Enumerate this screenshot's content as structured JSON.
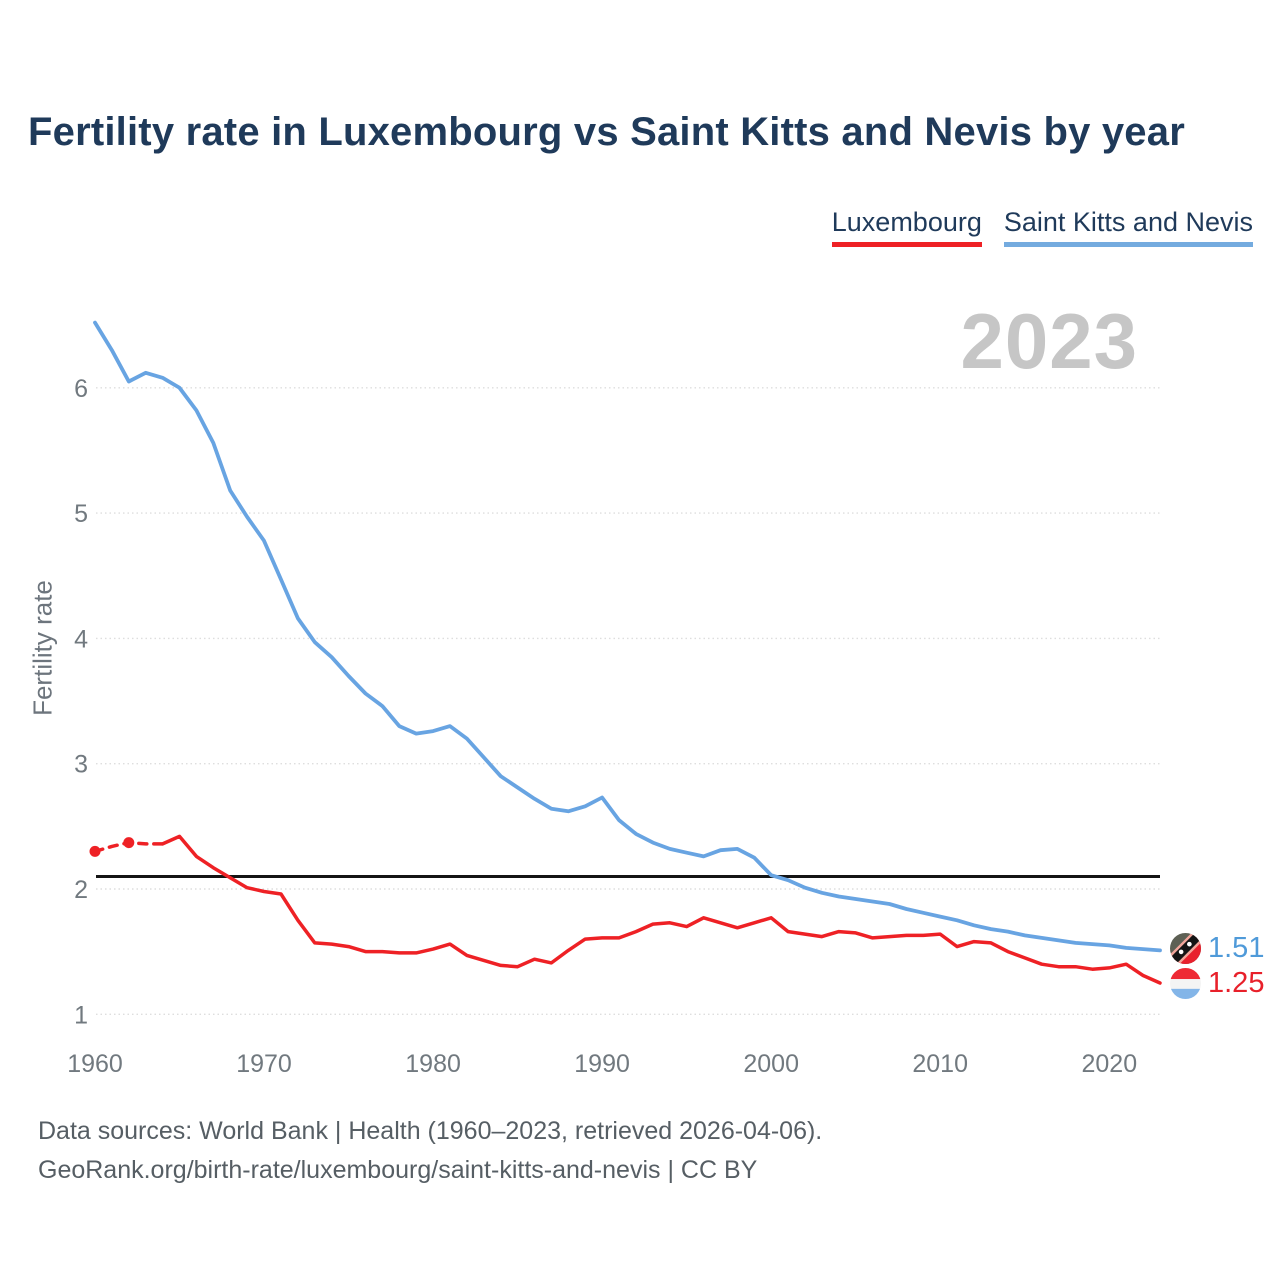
{
  "title": "Fertility rate in Luxembourg vs Saint Kitts and Nevis by year",
  "watermark": "2023",
  "legend": {
    "items": [
      {
        "label": "Luxembourg",
        "color": "#ee2125"
      },
      {
        "label": "Saint Kitts and Nevis",
        "color": "#74abdf"
      }
    ]
  },
  "end_labels": {
    "saint_kitts_and_nevis": "1.51",
    "luxembourg": "1.25",
    "skn_color": "#4f9ad9",
    "lux_color": "#e8202a"
  },
  "footer": {
    "line1": "Data sources: World Bank | Health (1960–2023, retrieved 2026-04-06).",
    "line2": "GeoRank.org/birth-rate/luxembourg/saint-kitts-and-nevis | CC BY"
  },
  "icons": {
    "luxembourg_flag": "luxembourg-flag-icon (red/white/light-blue horizontal bands, circle)",
    "saint_kitts_flag": "saint-kitts-and-nevis-flag-icon (green/red with black diagonal band and two white stars, circle)"
  },
  "chart_data": {
    "type": "line",
    "title": "Fertility rate in Luxembourg vs Saint Kitts and Nevis by year",
    "xlabel": "",
    "ylabel": "Fertility rate",
    "xlim": [
      1960,
      2023
    ],
    "ylim": [
      1,
      6.6
    ],
    "x_ticks": [
      1960,
      1970,
      1980,
      1990,
      2000,
      2010,
      2020
    ],
    "y_ticks": [
      1,
      2,
      3,
      4,
      5,
      6
    ],
    "grid": "horizontal dotted light gray",
    "legend_position": "top-right",
    "watermark_year": "2023",
    "reference_line": {
      "value": 2.1,
      "color": "#141414",
      "style": "solid horizontal"
    },
    "x": [
      1960,
      1961,
      1962,
      1963,
      1964,
      1965,
      1966,
      1967,
      1968,
      1969,
      1970,
      1971,
      1972,
      1973,
      1974,
      1975,
      1976,
      1977,
      1978,
      1979,
      1980,
      1981,
      1982,
      1983,
      1984,
      1985,
      1986,
      1987,
      1988,
      1989,
      1990,
      1991,
      1992,
      1993,
      1994,
      1995,
      1996,
      1997,
      1998,
      1999,
      2000,
      2001,
      2002,
      2003,
      2004,
      2005,
      2006,
      2007,
      2008,
      2009,
      2010,
      2011,
      2012,
      2013,
      2014,
      2015,
      2016,
      2017,
      2018,
      2019,
      2020,
      2021,
      2022,
      2023
    ],
    "series": [
      {
        "name": "Luxembourg",
        "color": "#ee2125",
        "style": "dashed with round markers through 1964, solid after",
        "dashed_until_year": 1964,
        "marker_years": [
          1960,
          1962
        ],
        "values": [
          2.3,
          2.34,
          2.37,
          2.36,
          2.36,
          2.42,
          2.26,
          2.17,
          2.09,
          2.01,
          1.98,
          1.96,
          1.75,
          1.57,
          1.56,
          1.54,
          1.5,
          1.5,
          1.49,
          1.49,
          1.52,
          1.56,
          1.47,
          1.43,
          1.39,
          1.38,
          1.44,
          1.41,
          1.51,
          1.6,
          1.61,
          1.61,
          1.66,
          1.72,
          1.73,
          1.7,
          1.77,
          1.73,
          1.69,
          1.73,
          1.77,
          1.66,
          1.64,
          1.62,
          1.66,
          1.65,
          1.61,
          1.62,
          1.63,
          1.63,
          1.64,
          1.54,
          1.58,
          1.57,
          1.5,
          1.45,
          1.4,
          1.38,
          1.38,
          1.36,
          1.37,
          1.4,
          1.31,
          1.25
        ]
      },
      {
        "name": "Saint Kitts and Nevis",
        "color": "#68a4e2",
        "style": "solid",
        "values": [
          6.52,
          6.3,
          6.05,
          6.12,
          6.08,
          6.0,
          5.82,
          5.56,
          5.18,
          4.97,
          4.78,
          4.47,
          4.16,
          3.97,
          3.85,
          3.7,
          3.56,
          3.46,
          3.3,
          3.24,
          3.26,
          3.3,
          3.2,
          3.05,
          2.9,
          2.81,
          2.72,
          2.64,
          2.62,
          2.66,
          2.73,
          2.55,
          2.44,
          2.37,
          2.32,
          2.29,
          2.26,
          2.31,
          2.32,
          2.25,
          2.11,
          2.07,
          2.01,
          1.97,
          1.94,
          1.92,
          1.9,
          1.88,
          1.84,
          1.81,
          1.78,
          1.75,
          1.71,
          1.68,
          1.66,
          1.63,
          1.61,
          1.59,
          1.57,
          1.56,
          1.55,
          1.53,
          1.52,
          1.51
        ]
      }
    ],
    "end_values": {
      "Luxembourg": 1.25,
      "Saint Kitts and Nevis": 1.51
    }
  }
}
